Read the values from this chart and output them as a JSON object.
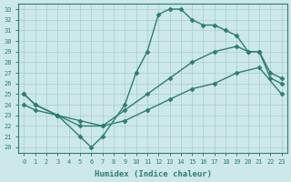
{
  "xlabel": "Humidex (Indice chaleur)",
  "x_top": [
    0,
    1,
    3,
    5,
    6,
    7,
    9,
    10,
    11,
    12,
    13,
    14,
    15,
    16,
    17,
    18,
    19,
    20,
    21,
    22,
    23
  ],
  "line_top": [
    25,
    24,
    23,
    21,
    20,
    21,
    24,
    27,
    29,
    32.5,
    33,
    33,
    32,
    31.5,
    31.5,
    31,
    30.5,
    29,
    29,
    26.5,
    26
  ],
  "x_mid": [
    0,
    1,
    3,
    5,
    7,
    9,
    11,
    13,
    15,
    17,
    19,
    20,
    21,
    22,
    23
  ],
  "line_mid": [
    25,
    24,
    23,
    22,
    22,
    23.5,
    25,
    26.5,
    28,
    29,
    29.5,
    29,
    29,
    27,
    26.5
  ],
  "x_bot": [
    0,
    1,
    3,
    5,
    7,
    9,
    11,
    13,
    15,
    17,
    19,
    21,
    23
  ],
  "line_bot": [
    24,
    23.5,
    23,
    22.5,
    22,
    22.5,
    23.5,
    24.5,
    25.5,
    26,
    27,
    27.5,
    25
  ],
  "line_color": "#2e7d6e",
  "bg_color": "#cce8e8",
  "grid_color": "#a8cccc",
  "ylim": [
    19.5,
    33.5
  ],
  "xlim": [
    -0.5,
    23.5
  ],
  "yticks": [
    20,
    21,
    22,
    23,
    24,
    25,
    26,
    27,
    28,
    29,
    30,
    31,
    32,
    33
  ],
  "xticks": [
    0,
    1,
    2,
    3,
    4,
    5,
    6,
    7,
    8,
    9,
    10,
    11,
    12,
    13,
    14,
    15,
    16,
    17,
    18,
    19,
    20,
    21,
    22,
    23
  ],
  "markersize": 2.5,
  "linewidth": 1.0
}
